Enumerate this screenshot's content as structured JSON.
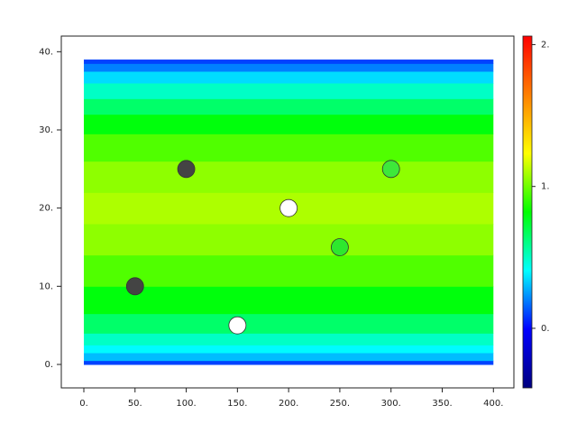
{
  "chart_data": {
    "type": "heatmap",
    "xlim": [
      -22,
      420
    ],
    "ylim": [
      -3,
      42
    ],
    "xticks": [
      {
        "value": 0,
        "label": "0."
      },
      {
        "value": 50,
        "label": "50."
      },
      {
        "value": 100,
        "label": "100."
      },
      {
        "value": 150,
        "label": "150."
      },
      {
        "value": 200,
        "label": "200."
      },
      {
        "value": 250,
        "label": "250."
      },
      {
        "value": 300,
        "label": "300."
      },
      {
        "value": 350,
        "label": "350."
      },
      {
        "value": 400,
        "label": "400."
      }
    ],
    "yticks": [
      {
        "value": 0,
        "label": "0."
      },
      {
        "value": 10,
        "label": "10."
      },
      {
        "value": 20,
        "label": "20."
      },
      {
        "value": 30,
        "label": "30."
      },
      {
        "value": 40,
        "label": "40."
      }
    ],
    "field": {
      "x": [
        0,
        400
      ],
      "y": [
        0,
        1,
        2,
        3,
        5,
        8,
        12,
        16,
        20,
        24,
        28,
        31,
        33,
        35,
        37,
        38,
        39
      ],
      "values": [
        0.1,
        0.3,
        0.4,
        0.5,
        0.65,
        0.8,
        0.95,
        1.05,
        1.1,
        1.05,
        0.95,
        0.8,
        0.65,
        0.5,
        0.35,
        0.2,
        0.1
      ]
    },
    "points": {
      "x": [
        50,
        100,
        150,
        200,
        250,
        300
      ],
      "y": [
        10,
        25,
        5,
        20,
        15,
        25
      ],
      "colors": [
        "#444444",
        "#444444",
        "#ffffff",
        "#ffffff",
        "#2ee82e",
        "#3ee83a"
      ]
    },
    "colormap": [
      "#00007f",
      "#0000ff",
      "#00ffff",
      "#00ff00",
      "#ffff00",
      "#ff7f00",
      "#ff0000"
    ],
    "clim": [
      -0.42,
      2.06
    ],
    "cticks": [
      {
        "value": 0,
        "label": "0."
      },
      {
        "value": 1,
        "label": "1."
      },
      {
        "value": 2,
        "label": "2."
      }
    ]
  }
}
